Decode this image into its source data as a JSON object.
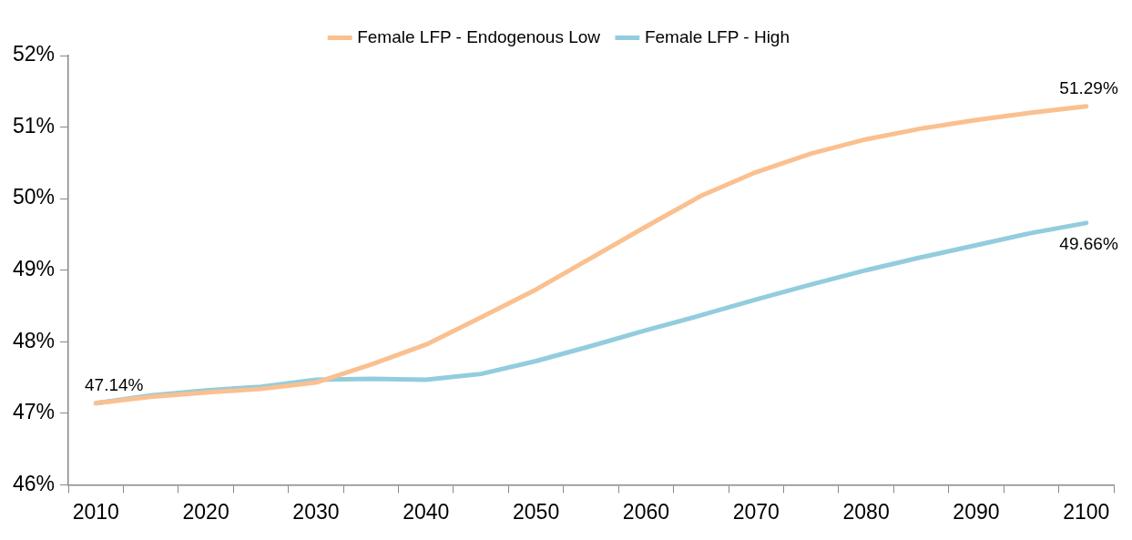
{
  "chart_data": {
    "type": "line",
    "categories": [
      "2010",
      null,
      "2020",
      null,
      "2030",
      null,
      "2040",
      null,
      "2050",
      null,
      "2060",
      null,
      "2070",
      null,
      "2080",
      null,
      "2090",
      null,
      "2100"
    ],
    "series": [
      {
        "name": "Female LFP - Endogenous Low",
        "color": "#fac090",
        "values": [
          47.14,
          47.23,
          47.29,
          47.34,
          47.43,
          47.68,
          47.96,
          48.34,
          48.73,
          49.17,
          49.61,
          50.04,
          50.37,
          50.63,
          50.83,
          50.98,
          51.1,
          51.2,
          51.29
        ],
        "value_labels": [
          "47.14%",
          null,
          null,
          null,
          null,
          null,
          null,
          null,
          null,
          null,
          null,
          null,
          null,
          null,
          null,
          null,
          null,
          null,
          "51.29%"
        ]
      },
      {
        "name": "Female LFP - High",
        "color": "#93cddd",
        "values": [
          47.14,
          47.25,
          47.32,
          47.37,
          47.47,
          47.48,
          47.47,
          47.55,
          47.73,
          47.94,
          48.16,
          48.37,
          48.59,
          48.8,
          49.0,
          49.18,
          49.35,
          49.52,
          49.66
        ],
        "value_labels": [
          null,
          null,
          null,
          null,
          null,
          null,
          null,
          null,
          null,
          null,
          null,
          null,
          null,
          null,
          null,
          null,
          null,
          null,
          "49.66%"
        ]
      }
    ],
    "ylim": [
      46,
      52
    ],
    "yticks": [
      {
        "value": 46,
        "label": "46%"
      },
      {
        "value": 47,
        "label": "47%"
      },
      {
        "value": 48,
        "label": "48%"
      },
      {
        "value": 49,
        "label": "49%"
      },
      {
        "value": 50,
        "label": "50%"
      },
      {
        "value": 51,
        "label": "51%"
      },
      {
        "value": 52,
        "label": "52%"
      }
    ],
    "grid": false,
    "legend": "top",
    "marker": "none",
    "line_style": "solid"
  }
}
